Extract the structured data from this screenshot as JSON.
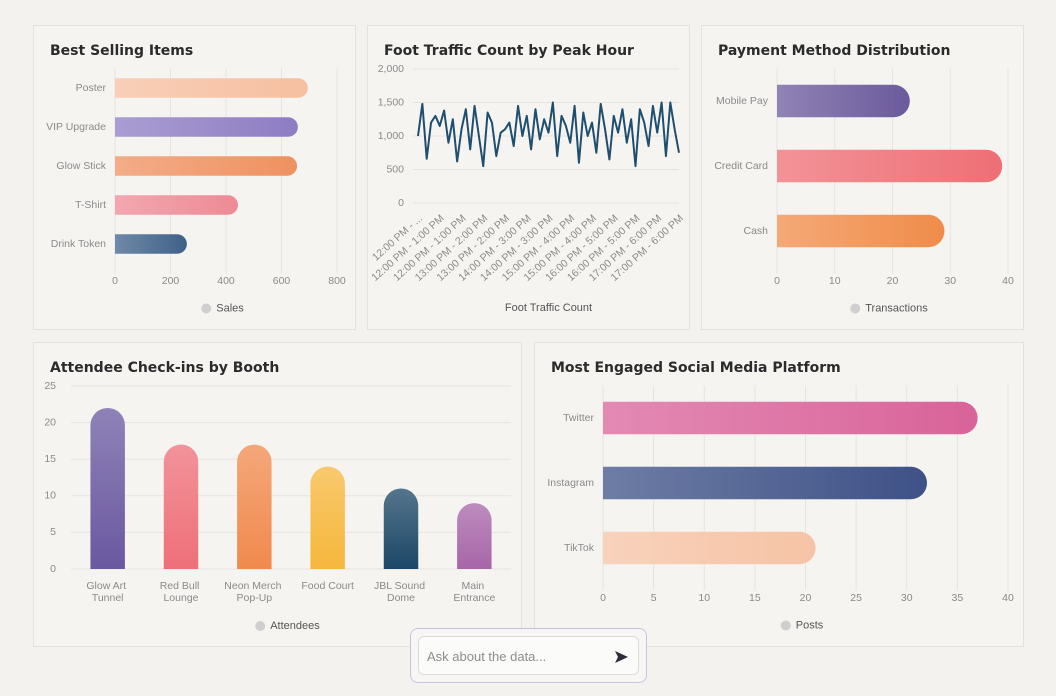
{
  "chart_data": [
    {
      "type": "bar",
      "orientation": "horizontal",
      "title": "Best Selling Items",
      "categories": [
        "Poster",
        "VIP Upgrade",
        "Glow Stick",
        "T-Shirt",
        "Drink Token"
      ],
      "series": [
        {
          "name": "Sales",
          "values": [
            695,
            659,
            656,
            443,
            259
          ],
          "colors": [
            "#f6bfa0",
            "#8e7cc3",
            "#ef9160",
            "#ee8a95",
            "#3f6189"
          ]
        }
      ],
      "xlim": [
        0,
        800
      ],
      "xticks": [
        0,
        200,
        400,
        600,
        800
      ],
      "grid": true
    },
    {
      "type": "line",
      "title": "Foot Traffic Count by Peak Hour",
      "categories": [
        "12:00 PM - ...",
        null,
        null,
        null,
        null,
        "12:00 PM - 1:00 PM",
        null,
        null,
        null,
        null,
        "12:00 PM - 1:00 PM",
        null,
        null,
        null,
        null,
        "13:00 PM - 2:00 PM",
        null,
        null,
        null,
        null,
        "13:00 PM - 2:00 PM",
        null,
        null,
        null,
        null,
        "14:00 PM - 3:00 PM",
        null,
        null,
        null,
        null,
        "14:00 PM - 3:00 PM",
        null,
        null,
        null,
        null,
        "15:00 PM - 4:00 PM",
        null,
        null,
        null,
        null,
        "15:00 PM - 4:00 PM",
        null,
        null,
        null,
        null,
        "16:00 PM - 5:00 PM",
        null,
        null,
        null,
        null,
        "16:00 PM - 5:00 PM",
        null,
        null,
        null,
        null,
        "17:00 PM - 6:00 PM",
        null,
        null,
        null,
        null,
        "17:00 PM - 6:00 PM"
      ],
      "values": [
        1000,
        1480,
        660,
        1200,
        1300,
        1150,
        1380,
        900,
        1250,
        620,
        1100,
        1400,
        800,
        1450,
        1000,
        550,
        1350,
        1200,
        700,
        1050,
        1100,
        1200,
        850,
        1450,
        1000,
        1300,
        800,
        1400,
        950,
        1250,
        1050,
        1500,
        700,
        1300,
        1150,
        900,
        1450,
        600,
        1350,
        1000,
        1200,
        750,
        1480,
        1100,
        650,
        1300,
        1050,
        1400,
        900,
        1250,
        550,
        1400,
        1200,
        850,
        1450,
        1050,
        1500,
        700,
        1500,
        1100,
        750
      ],
      "color": "#1f4e6e",
      "x_label": "Foot Traffic Count",
      "ylim": [
        0,
        2000
      ],
      "yticks": [
        0,
        500,
        {
          "value": 1000,
          "label": "1,000"
        },
        {
          "value": 1500,
          "label": "1,500"
        },
        {
          "value": 2000,
          "label": "2,000"
        }
      ],
      "grid": true
    },
    {
      "type": "bar",
      "orientation": "horizontal",
      "title": "Payment Method Distribution",
      "categories": [
        "Mobile Pay",
        "Credit Card",
        "Cash"
      ],
      "series": [
        {
          "name": "Transactions",
          "values": [
            23,
            39,
            29
          ],
          "colors": [
            "#6b5a9c",
            "#ee6f75",
            "#f08c4a"
          ]
        }
      ],
      "xlim": [
        0,
        40
      ],
      "xticks": [
        0,
        10,
        20,
        30,
        40
      ],
      "grid": true
    },
    {
      "type": "bar",
      "orientation": "vertical",
      "title": "Attendee Check-ins by Booth",
      "categories": [
        "Glow Art Tunnel",
        "Red Bull Lounge",
        "Neon Merch Pop-Up",
        "Food Court",
        "JBL Sound Dome",
        "Main Entrance"
      ],
      "series": [
        {
          "name": "Attendees",
          "values": [
            22,
            17,
            17,
            14,
            11,
            9
          ],
          "colors": [
            "#6a58a0",
            "#ee6f78",
            "#f08a4e",
            "#f6b73c",
            "#1c4766",
            "#a766a8"
          ]
        }
      ],
      "ylim": [
        0,
        25
      ],
      "yticks": [
        0,
        5,
        10,
        15,
        20,
        25
      ],
      "grid": true
    },
    {
      "type": "bar",
      "orientation": "horizontal",
      "title": "Most Engaged Social Media Platform",
      "categories": [
        "Twitter",
        "Instagram",
        "TikTok"
      ],
      "series": [
        {
          "name": "Posts",
          "values": [
            37,
            32,
            21
          ],
          "colors": [
            "#d9639a",
            "#3e5187",
            "#f6c3a5"
          ]
        }
      ],
      "xlim": [
        0,
        40
      ],
      "xticks": [
        0,
        5,
        10,
        15,
        20,
        25,
        30,
        35,
        40
      ],
      "grid": true
    }
  ],
  "chat_input": {
    "placeholder": "Ask about the data..."
  }
}
